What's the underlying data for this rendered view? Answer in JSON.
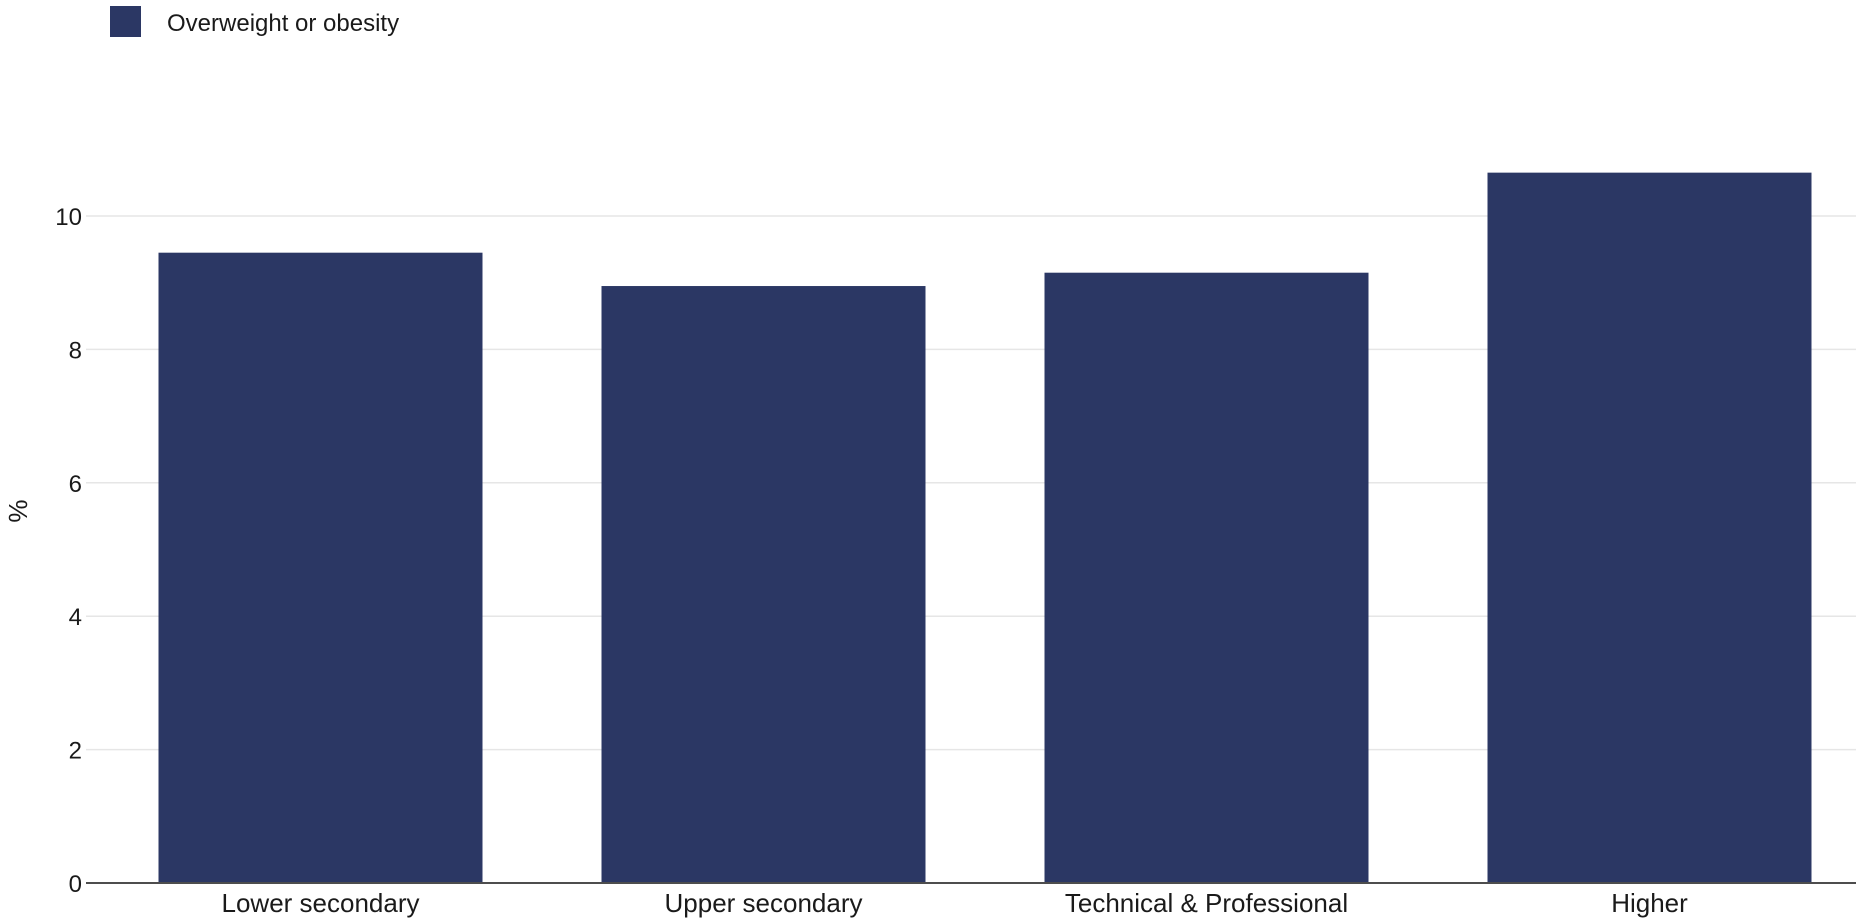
{
  "chart_data": {
    "type": "bar",
    "categories": [
      "Lower secondary",
      "Upper secondary",
      "Technical & Professional",
      "Higher"
    ],
    "series": [
      {
        "name": "Overweight or obesity",
        "values": [
          9.45,
          8.95,
          9.15,
          10.65
        ],
        "color": "#2b3764"
      }
    ],
    "title": "",
    "xlabel": "",
    "ylabel": "%",
    "ylim": [
      0,
      10.9
    ],
    "yticks": [
      0,
      2,
      4,
      6,
      8,
      10
    ],
    "grid": true,
    "legend_position": "top-left"
  }
}
